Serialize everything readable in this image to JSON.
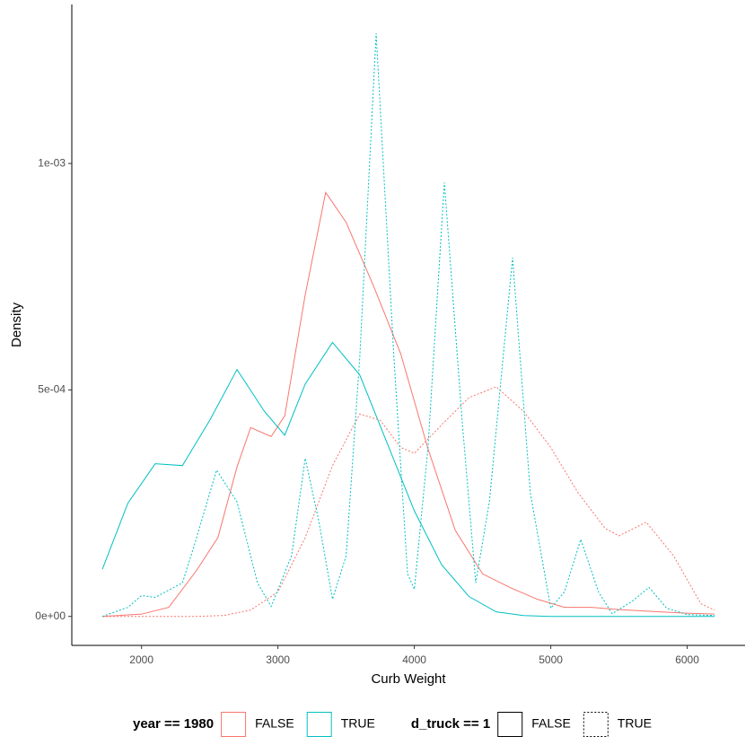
{
  "chart_data": {
    "type": "line",
    "x_label": "Curb Weight",
    "y_label": "Density",
    "xlim": [
      1489,
      6424
    ],
    "ylim": [
      -6.4e-05,
      0.001351
    ],
    "xticks": [
      2000,
      3000,
      4000,
      5000,
      6000
    ],
    "yticks": [
      {
        "value": 0,
        "label": "0e+00"
      },
      {
        "value": 0.0005,
        "label": "5e-04"
      },
      {
        "value": 0.001,
        "label": "1e-03"
      }
    ],
    "grid": false,
    "series": [
      {
        "color": "#f8766d",
        "linetype": "solid",
        "x": [
          1713,
          2000,
          2200,
          2400,
          2560,
          2700,
          2800,
          2950,
          3050,
          3200,
          3350,
          3500,
          3700,
          3900,
          4100,
          4300,
          4500,
          4700,
          4900,
          5100,
          5300,
          5500,
          5800,
          6000,
          6200
        ],
        "values": [
          0,
          5e-06,
          2e-05,
          0.0001,
          0.000174,
          0.00033,
          0.000417,
          0.000397,
          0.000443,
          0.00071,
          0.000936,
          0.00087,
          0.00073,
          0.00058,
          0.00037,
          0.00019,
          9.4e-05,
          6.4e-05,
          3.8e-05,
          2e-05,
          2e-05,
          1.5e-05,
          1e-05,
          7e-06,
          5e-06
        ]
      },
      {
        "color": "#00bfc4",
        "linetype": "solid",
        "x": [
          1713,
          1900,
          2100,
          2300,
          2500,
          2700,
          2900,
          3050,
          3200,
          3400,
          3600,
          3800,
          4000,
          4200,
          4400,
          4600,
          4800,
          5000,
          6200
        ],
        "values": [
          0.000104,
          0.00025,
          0.000337,
          0.000333,
          0.000433,
          0.000545,
          0.000453,
          0.0004,
          0.000513,
          0.000605,
          0.000533,
          0.000383,
          0.000233,
          0.000114,
          4.4e-05,
          1e-05,
          2e-06,
          0,
          0
        ]
      },
      {
        "color": "#f8766d",
        "linetype": "dotted",
        "x": [
          1713,
          2400,
          2600,
          2800,
          3000,
          3200,
          3400,
          3600,
          3750,
          3900,
          4000,
          4200,
          4400,
          4600,
          4800,
          5000,
          5200,
          5400,
          5500,
          5700,
          5900,
          6100,
          6200
        ],
        "values": [
          0,
          0,
          2e-06,
          1.4e-05,
          5.4e-05,
          0.000174,
          0.000333,
          0.000447,
          0.000433,
          0.000373,
          0.00036,
          0.000423,
          0.000483,
          0.000507,
          0.000453,
          0.000373,
          0.000273,
          0.000194,
          0.000178,
          0.000208,
          0.000134,
          2.8e-05,
          1.4e-05
        ]
      },
      {
        "color": "#00bfc4",
        "linetype": "dotted",
        "x": [
          1713,
          1900,
          2000,
          2100,
          2300,
          2390,
          2550,
          2700,
          2850,
          2950,
          3100,
          3200,
          3300,
          3400,
          3500,
          3600,
          3720,
          3850,
          3950,
          4000,
          4100,
          4220,
          4350,
          4450,
          4550,
          4720,
          4850,
          5000,
          5100,
          5220,
          5350,
          5450,
          5600,
          5720,
          5850,
          6000,
          6200
        ],
        "values": [
          0,
          2e-05,
          4.6e-05,
          4.2e-05,
          7.4e-05,
          0.00016,
          0.000323,
          0.000253,
          7.4e-05,
          2.2e-05,
          0.000134,
          0.000349,
          0.00021,
          3.8e-05,
          0.000134,
          0.000573,
          0.001287,
          0.000573,
          9.4e-05,
          6e-05,
          0.000373,
          0.000958,
          0.000433,
          7.4e-05,
          0.000253,
          0.000792,
          0.000273,
          1.8e-05,
          5.4e-05,
          0.00017,
          5.4e-05,
          6e-06,
          3.4e-05,
          6.4e-05,
          1.8e-05,
          4e-06,
          2e-06
        ]
      }
    ],
    "legends": [
      {
        "title": "year == 1980",
        "entries": [
          {
            "label": "FALSE",
            "color": "#f8766d"
          },
          {
            "label": "TRUE",
            "color": "#00bfc4"
          }
        ]
      },
      {
        "title": "d_truck == 1",
        "entries": [
          {
            "label": "FALSE",
            "linetype": "solid"
          },
          {
            "label": "TRUE",
            "linetype": "dotted"
          }
        ]
      }
    ]
  }
}
